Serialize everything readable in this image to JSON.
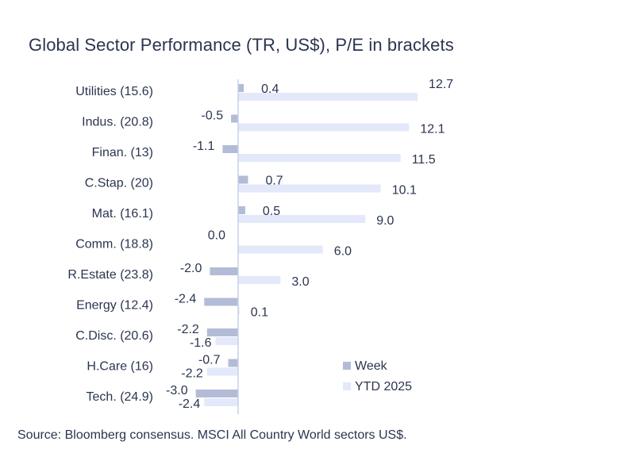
{
  "title": "Global Sector Performance (TR, US$), P/E in brackets",
  "source": "Source: Bloomberg consensus. MSCI All Country World sectors US$.",
  "colors": {
    "week": "#b3bcd6",
    "ytd": "#e3e8fb",
    "axis": "#c7d0ea",
    "text": "#2b3550"
  },
  "chart_data": {
    "type": "bar",
    "orientation": "horizontal",
    "categories": [
      "Utilities (15.6)",
      "Indus. (20.8)",
      "Finan. (13)",
      "C.Stap. (20)",
      "Mat. (16.1)",
      "Comm. (18.8)",
      "R.Estate (23.8)",
      "Energy (12.4)",
      "C.Disc. (20.6)",
      "H.Care (16)",
      "Tech. (24.9)"
    ],
    "series": [
      {
        "name": "Week",
        "values": [
          0.4,
          -0.5,
          -1.1,
          0.7,
          0.5,
          0.0,
          -2.0,
          -2.4,
          -2.2,
          -0.7,
          -3.0
        ]
      },
      {
        "name": "YTD 2025",
        "values": [
          12.7,
          12.1,
          11.5,
          10.1,
          9.0,
          6.0,
          3.0,
          0.1,
          -1.6,
          -2.2,
          -2.4
        ]
      }
    ],
    "week_labels": [
      "0.4",
      "-0.5",
      "-1.1",
      "0.7",
      "0.5",
      "0.0",
      "-2.0",
      "-2.4",
      "-2.2",
      "-0.7",
      "-3.0"
    ],
    "ytd_labels": [
      "12.7",
      "12.1",
      "11.5",
      "10.1",
      "9.0",
      "6.0",
      "3.0",
      "0.1",
      "-1.6",
      "-2.2",
      "-2.4"
    ],
    "legend_position": "bottom-right"
  }
}
